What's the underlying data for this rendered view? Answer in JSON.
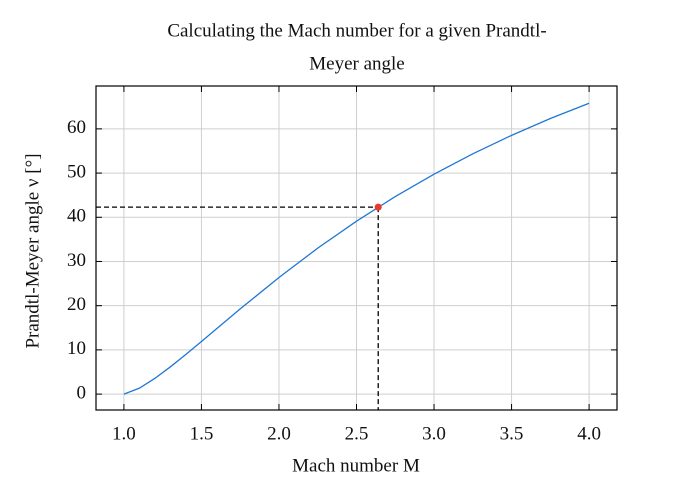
{
  "chart_data": {
    "type": "line",
    "title": [
      "Calculating the Mach number for a given Prandtl-",
      "Meyer angle"
    ],
    "xlabel": "Mach number M",
    "ylabel": "Prandtl-Meyer angle ν [°]",
    "x": [
      1.0,
      1.1,
      1.2,
      1.3,
      1.4,
      1.5,
      1.75,
      2.0,
      2.25,
      2.5,
      2.75,
      3.0,
      3.25,
      3.5,
      3.75,
      4.0
    ],
    "series": [
      {
        "color": "#1f77d4",
        "values": [
          0,
          1.34,
          3.56,
          6.17,
          8.99,
          11.91,
          19.27,
          26.38,
          33.02,
          39.12,
          44.69,
          49.76,
          54.36,
          58.53,
          62.35,
          65.79
        ]
      }
    ],
    "point": {
      "x": 2.64,
      "y": 42.3,
      "color": "#e8392c"
    },
    "xlim": [
      0.82,
      4.18
    ],
    "ylim": [
      -3.6,
      69.7
    ],
    "xticks": [
      {
        "value": 1,
        "label": "1.0"
      },
      {
        "value": 1.5,
        "label": "1.5"
      },
      {
        "value": 2,
        "label": "2.0"
      },
      {
        "value": 2.5,
        "label": "2.5"
      },
      {
        "value": 3,
        "label": "3.0"
      },
      {
        "value": 3.5,
        "label": "3.5"
      },
      {
        "value": 4,
        "label": "4.0"
      }
    ],
    "yticks": [
      0,
      10,
      20,
      30,
      40,
      50,
      60
    ],
    "grid": true
  }
}
